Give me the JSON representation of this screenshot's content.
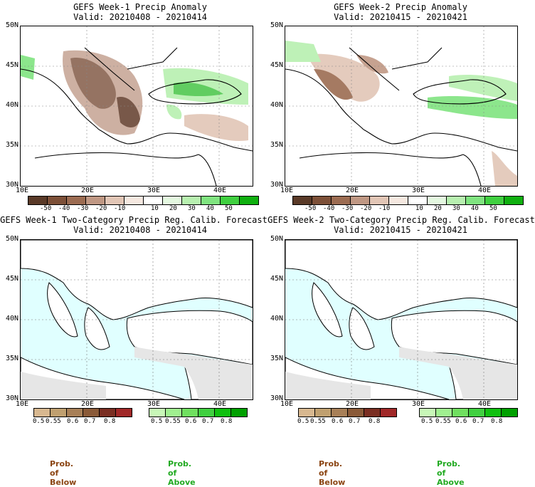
{
  "panels": [
    {
      "title": "GEFS Week-1 Precip Anomaly",
      "valid": "Valid: 20210408 - 20210414"
    },
    {
      "title": "GEFS Week-2 Precip Anomaly",
      "valid": "Valid: 20210415 - 20210421"
    },
    {
      "title": "GEFS Week-1 Two-Category Precip Reg. Calib. Forecast",
      "valid": "Valid: 20210408 - 20210414"
    },
    {
      "title": "GEFS Week-2 Two-Category Precip Reg. Calib. Forecast",
      "valid": "Valid: 20210415 - 20210421"
    }
  ],
  "lat_ticks": [
    "50N",
    "45N",
    "40N",
    "35N",
    "30N"
  ],
  "lon_ticks": [
    "10E",
    "20E",
    "30E",
    "40E"
  ],
  "anomaly_colorbar": {
    "labels": [
      "-50",
      "-40",
      "-30",
      "-20",
      "-10",
      "10",
      "20",
      "30",
      "40",
      "50"
    ],
    "colors": [
      "#5a3a28",
      "#7d5038",
      "#9c6c52",
      "#c09884",
      "#e2c6b6",
      "#f5e8e0",
      "#ffffff",
      "#e4f8e0",
      "#b8f0b0",
      "#80e480",
      "#40d040",
      "#10b010"
    ]
  },
  "prob_colorbar": {
    "below_labels": [
      "0.5",
      "0.55",
      "0.6",
      "0.7",
      "0.8"
    ],
    "above_labels": [
      "0.5",
      "0.55",
      "0.6",
      "0.7",
      "0.8"
    ],
    "below_colors": [
      "#d8b890",
      "#c0a070",
      "#a88058",
      "#8a5a38",
      "#7a2e22",
      "#a02828"
    ],
    "above_colors": [
      "#c8f8b8",
      "#a0f090",
      "#70e060",
      "#40d040",
      "#10c010",
      "#00a000"
    ]
  },
  "prob_of_below": "Prob. of Below",
  "prob_of_above": "Prob. of Above",
  "colors": {
    "sea": "#e0ffff",
    "land": "#ffffff",
    "nodata": "#e6e6e6"
  }
}
